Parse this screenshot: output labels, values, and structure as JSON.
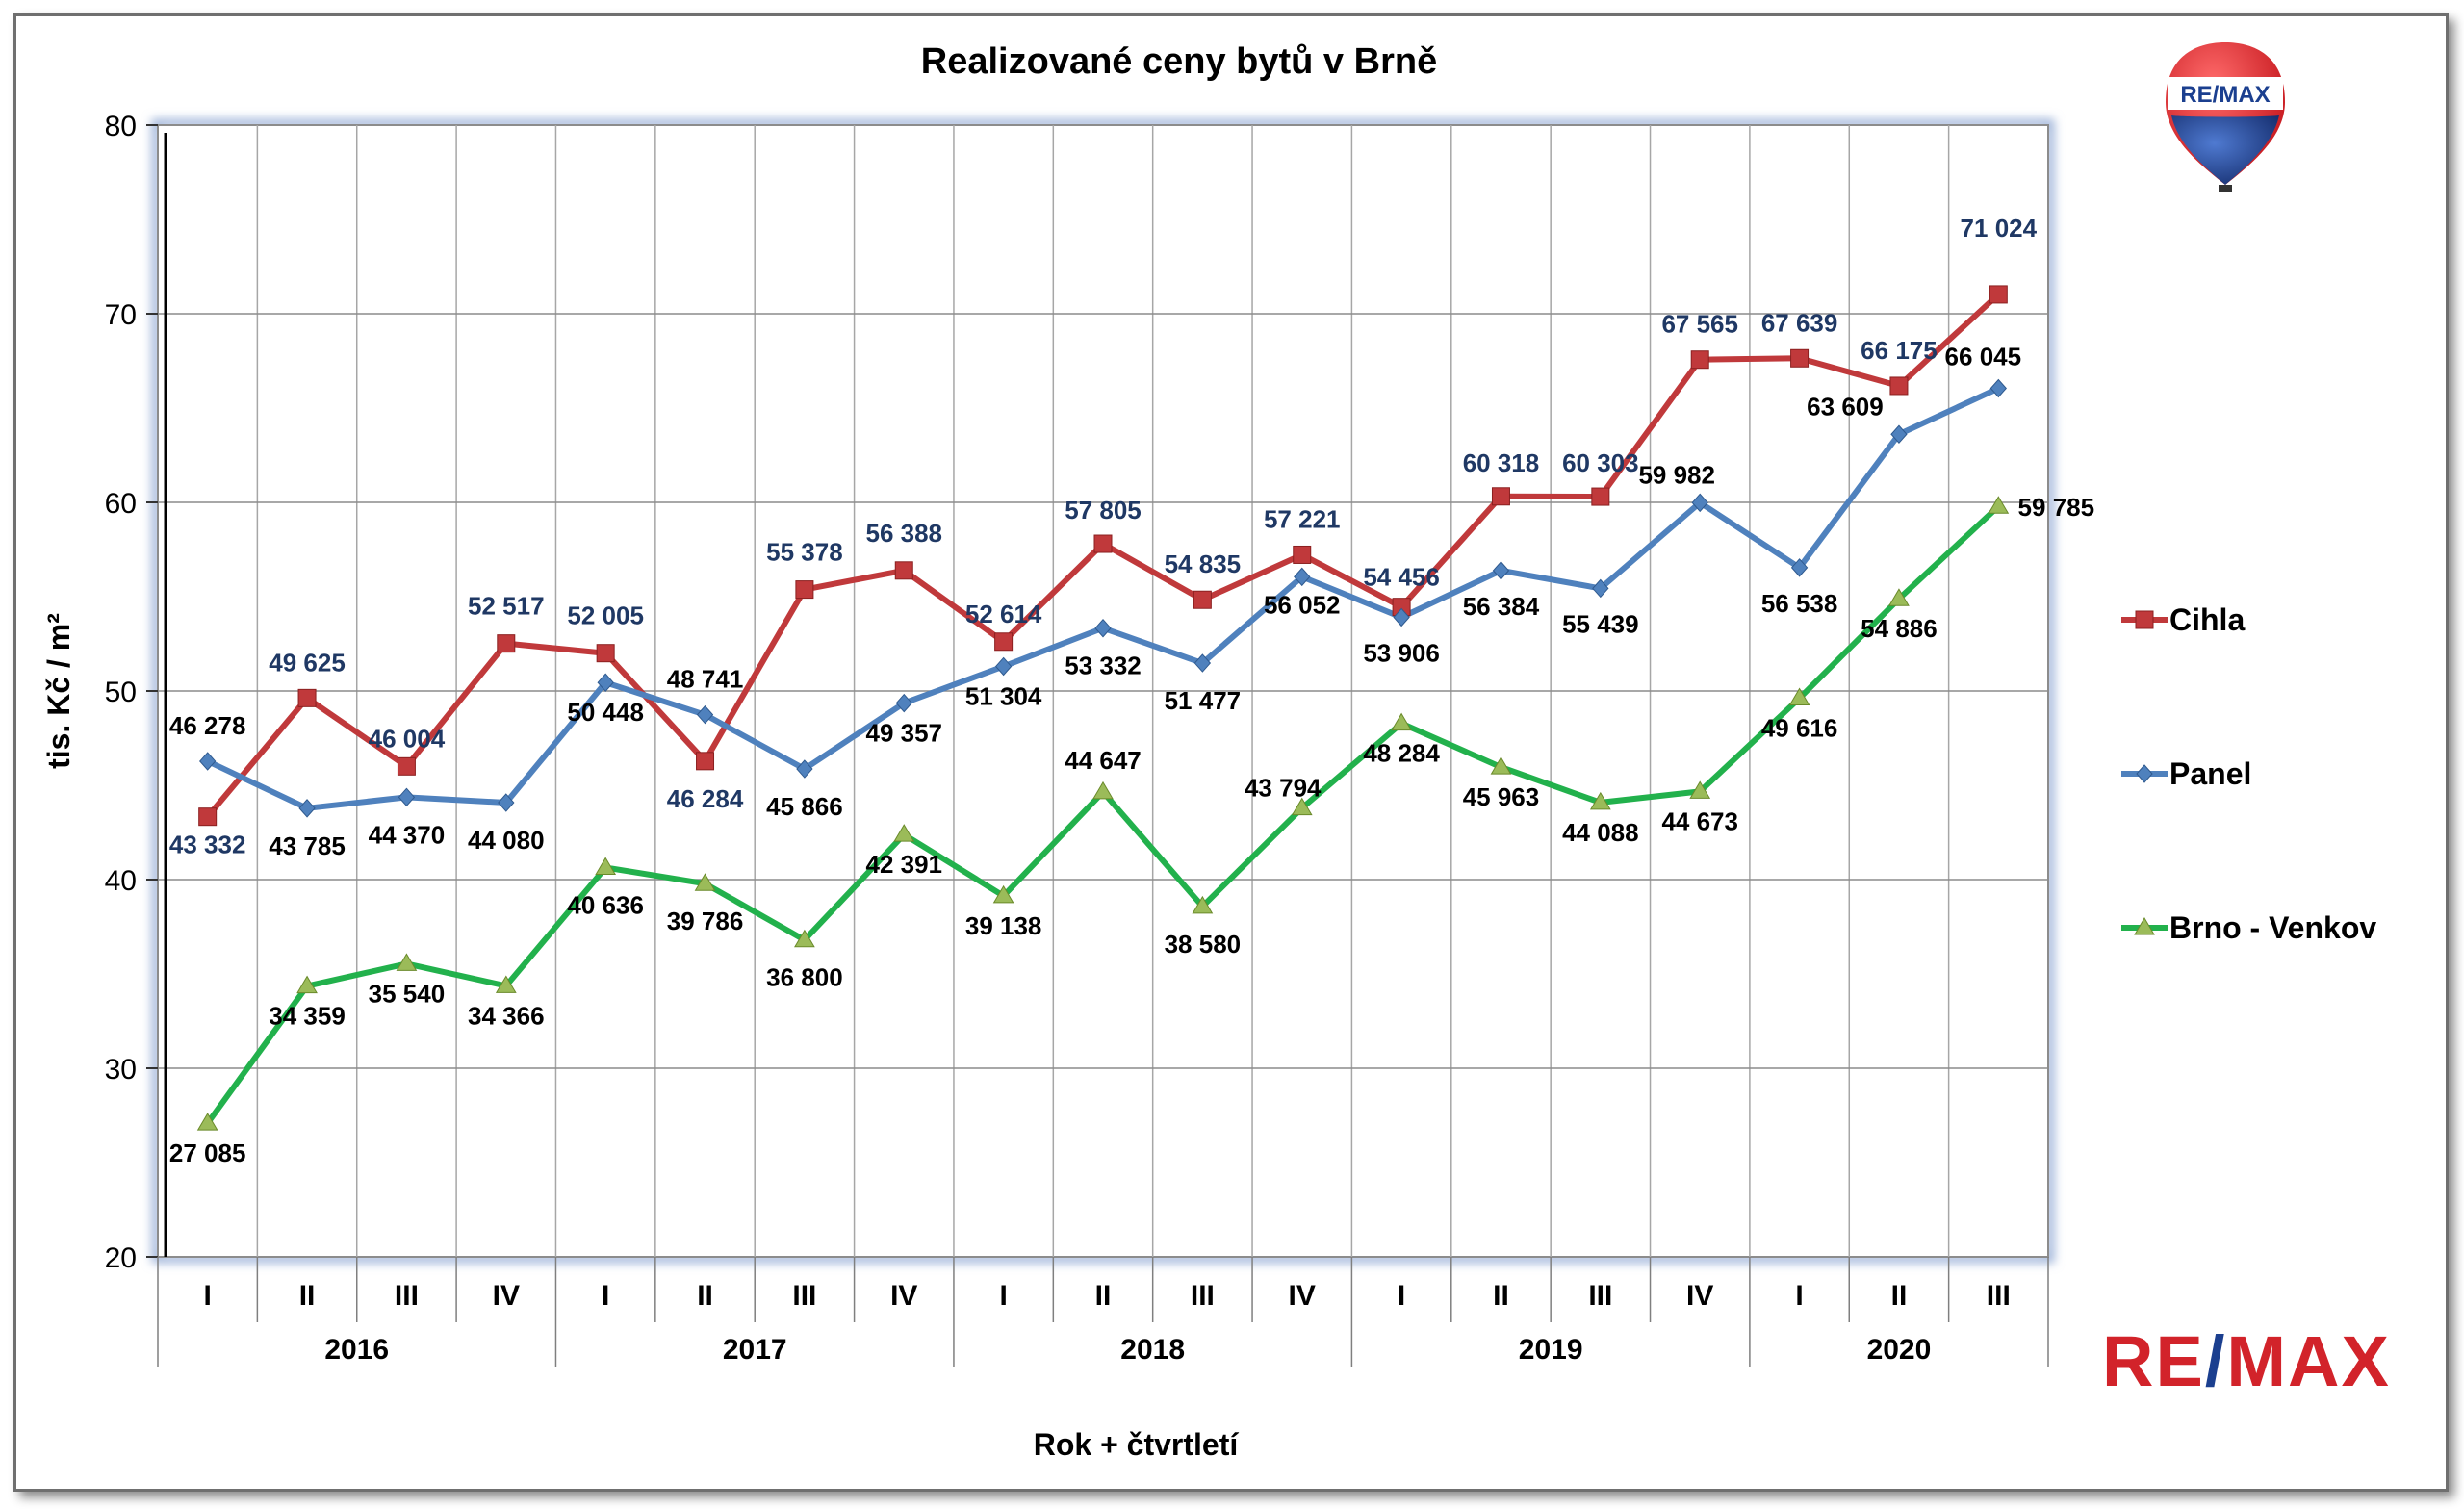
{
  "chart_data": {
    "type": "line",
    "title": "Realizované ceny bytů v Brně",
    "xlabel": "Rok + čtvrtletí",
    "ylabel": "tis. Kč / m²",
    "ylim": [
      20,
      80
    ],
    "yticks": [
      "20",
      "30",
      "40",
      "50",
      "60",
      "70",
      "80"
    ],
    "grid": true,
    "legend_position": "right",
    "quarter_labels": [
      "I",
      "II",
      "III",
      "IV",
      "I",
      "II",
      "III",
      "IV",
      "I",
      "II",
      "III",
      "IV",
      "I",
      "II",
      "III",
      "IV",
      "I",
      "II",
      "III"
    ],
    "year_groups": [
      {
        "label": "2016",
        "start": 0,
        "count": 4
      },
      {
        "label": "2017",
        "start": 4,
        "count": 4
      },
      {
        "label": "2018",
        "start": 8,
        "count": 4
      },
      {
        "label": "2019",
        "start": 12,
        "count": 4
      },
      {
        "label": "2020",
        "start": 16,
        "count": 3
      }
    ],
    "series": [
      {
        "name": "Cihla",
        "color": "#c0393b",
        "marker": "square",
        "values": [
          43.332,
          49.625,
          46.004,
          52.517,
          52.005,
          46.284,
          55.378,
          56.388,
          52.614,
          57.805,
          54.835,
          57.221,
          54.456,
          60.318,
          60.303,
          67.565,
          67.639,
          66.175,
          71.024
        ],
        "labels": [
          "43 332",
          "49 625",
          "46 004",
          "52 517",
          "52 005",
          "46 284",
          "55 378",
          "56 388",
          "52 614",
          "57 805",
          "54 835",
          "57 221",
          "54 456",
          "60 318",
          "60 303",
          "67 565",
          "67 639",
          "66 175",
          "71 024"
        ]
      },
      {
        "name": "Panel",
        "color": "#4f81bd",
        "marker": "diamond",
        "values": [
          46.278,
          43.785,
          44.37,
          44.08,
          50.448,
          48.741,
          45.866,
          49.357,
          51.304,
          53.332,
          51.477,
          56.052,
          53.906,
          56.384,
          55.439,
          59.982,
          56.538,
          63.609,
          66.045
        ],
        "labels": [
          "46 278",
          "43 785",
          "44 370",
          "44 080",
          "50 448",
          "48 741",
          "45 866",
          "49 357",
          "51 304",
          "53 332",
          "51 477",
          "56 052",
          "53 906",
          "56 384",
          "55 439",
          "59 982",
          "56 538",
          "63 609",
          "66 045"
        ]
      },
      {
        "name": "Brno - Venkov",
        "color": "#22b14c",
        "marker": "triangle",
        "values": [
          27.085,
          34.359,
          35.54,
          34.366,
          40.636,
          39.786,
          36.8,
          42.391,
          39.138,
          44.647,
          38.58,
          43.794,
          48.284,
          45.963,
          44.088,
          44.673,
          49.616,
          54.886,
          59.785
        ],
        "labels": [
          "27 085",
          "34 359",
          "35 540",
          "34 366",
          "40 636",
          "39 786",
          "36 800",
          "42 391",
          "39 138",
          "44 647",
          "38 580",
          "43 794",
          "48 284",
          "45 963",
          "44 088",
          "44 673",
          "49 616",
          "54 886",
          "59 785"
        ]
      }
    ]
  },
  "brand": {
    "balloon_text": "RE/MAX",
    "logo_left": "RE",
    "logo_slash": "/",
    "logo_right": "MAX",
    "brand_red": "#d2232a",
    "brand_blue": "#1b3f8f"
  }
}
